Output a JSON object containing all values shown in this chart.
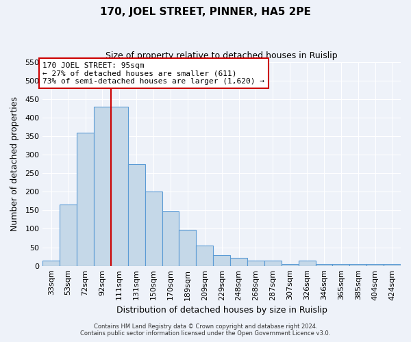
{
  "title": "170, JOEL STREET, PINNER, HA5 2PE",
  "subtitle": "Size of property relative to detached houses in Ruislip",
  "xlabel": "Distribution of detached houses by size in Ruislip",
  "ylabel": "Number of detached properties",
  "categories": [
    "33sqm",
    "53sqm",
    "72sqm",
    "92sqm",
    "111sqm",
    "131sqm",
    "150sqm",
    "170sqm",
    "189sqm",
    "209sqm",
    "229sqm",
    "248sqm",
    "268sqm",
    "287sqm",
    "307sqm",
    "326sqm",
    "346sqm",
    "365sqm",
    "385sqm",
    "404sqm",
    "424sqm"
  ],
  "values": [
    15,
    165,
    360,
    430,
    430,
    275,
    200,
    147,
    97,
    55,
    29,
    22,
    14,
    14,
    5,
    14,
    5,
    5,
    5,
    5,
    5
  ],
  "bar_color": "#c5d8e8",
  "bar_edge_color": "#5b9bd5",
  "vline_color": "#cc0000",
  "vline_pos": 3.5,
  "annotation_title": "170 JOEL STREET: 95sqm",
  "annotation_line1": "← 27% of detached houses are smaller (611)",
  "annotation_line2": "73% of semi-detached houses are larger (1,620) →",
  "annotation_box_color": "#ffffff",
  "annotation_box_edge": "#cc0000",
  "footer1": "Contains HM Land Registry data © Crown copyright and database right 2024.",
  "footer2": "Contains public sector information licensed under the Open Government Licence v3.0.",
  "ylim": [
    0,
    550
  ],
  "background_color": "#eef2f9",
  "grid_color": "#ffffff",
  "yticks": [
    0,
    50,
    100,
    150,
    200,
    250,
    300,
    350,
    400,
    450,
    500,
    550
  ]
}
